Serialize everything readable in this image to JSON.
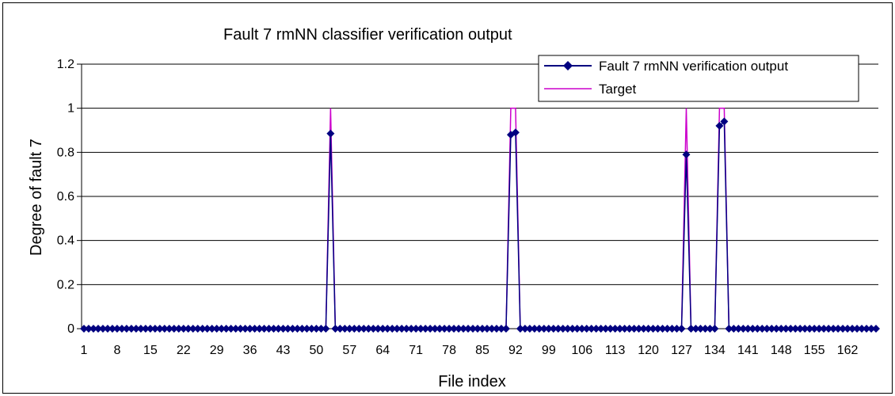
{
  "chart_data": {
    "type": "line",
    "title": "Fault 7 rmNN classifier verification output",
    "xlabel": "File index",
    "ylabel": "Degree of fault 7",
    "ylim": [
      0,
      1.2
    ],
    "yticks": [
      "0",
      "0.2",
      "0.4",
      "0.6",
      "0.8",
      "1",
      "1.2"
    ],
    "x_start": 1,
    "x_end": 168,
    "x_tick_labels": [
      "1",
      "8",
      "15",
      "22",
      "29",
      "36",
      "43",
      "50",
      "57",
      "64",
      "71",
      "78",
      "85",
      "92",
      "99",
      "106",
      "113",
      "120",
      "127",
      "134",
      "141",
      "148",
      "155",
      "162"
    ],
    "grid": "horizontal",
    "legend_position": "top-right",
    "colors": {
      "output": "#000080",
      "target": "#cc00cc"
    },
    "series": [
      {
        "name": "Fault 7 rmNN verification output",
        "marker": "diamond",
        "baseline": 0,
        "peaks": [
          {
            "x": 53,
            "y": 0.885
          },
          {
            "x": 91,
            "y": 0.88
          },
          {
            "x": 92,
            "y": 0.89
          },
          {
            "x": 128,
            "y": 0.79
          },
          {
            "x": 135,
            "y": 0.92
          },
          {
            "x": 136,
            "y": 0.94
          }
        ]
      },
      {
        "name": "Target",
        "marker": "none",
        "baseline": 0,
        "peaks": [
          {
            "x": 53,
            "y": 1
          },
          {
            "x": 91,
            "y": 1
          },
          {
            "x": 92,
            "y": 1
          },
          {
            "x": 128,
            "y": 1
          },
          {
            "x": 135,
            "y": 1
          },
          {
            "x": 136,
            "y": 1
          }
        ]
      }
    ]
  }
}
